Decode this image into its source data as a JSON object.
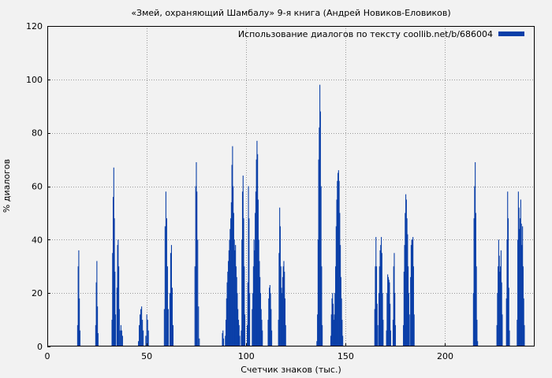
{
  "chart_data": {
    "type": "bar",
    "title": "«Змей, охраняющий Шамбалу» 9-я книга (Андрей Новиков-Еловиков)",
    "xlabel": "Счетчик знаков (тыс.)",
    "ylabel": "% диалогов",
    "xlim": [
      0,
      245
    ],
    "ylim": [
      0,
      120
    ],
    "xticks": [
      0,
      50,
      100,
      150,
      200
    ],
    "yticks": [
      0,
      20,
      40,
      60,
      80,
      100,
      120
    ],
    "grid": true,
    "legend_position": "top-right",
    "bar_color": "#0a3fa8",
    "series": [
      {
        "name": "Использование диалогов по тексту coollib.net/b/686004",
        "points": [
          [
            15.2,
            8
          ],
          [
            15.5,
            30
          ],
          [
            15.8,
            36
          ],
          [
            16.1,
            18
          ],
          [
            16.4,
            6
          ],
          [
            24.3,
            8
          ],
          [
            24.6,
            24
          ],
          [
            24.9,
            32
          ],
          [
            25.2,
            15
          ],
          [
            25.5,
            5
          ],
          [
            32.5,
            10
          ],
          [
            32.8,
            35
          ],
          [
            33.1,
            56
          ],
          [
            33.4,
            67
          ],
          [
            33.7,
            48
          ],
          [
            34.0,
            28
          ],
          [
            34.3,
            12
          ],
          [
            35.0,
            22
          ],
          [
            35.3,
            38
          ],
          [
            35.6,
            40
          ],
          [
            35.9,
            30
          ],
          [
            36.2,
            14
          ],
          [
            36.6,
            6
          ],
          [
            37.0,
            8
          ],
          [
            37.4,
            6
          ],
          [
            37.8,
            4
          ],
          [
            45.8,
            2
          ],
          [
            46.2,
            8
          ],
          [
            46.6,
            12
          ],
          [
            47.0,
            14
          ],
          [
            47.4,
            15
          ],
          [
            47.8,
            10
          ],
          [
            48.2,
            6
          ],
          [
            49.5,
            4
          ],
          [
            50.0,
            12
          ],
          [
            50.4,
            10
          ],
          [
            50.8,
            6
          ],
          [
            58.8,
            14
          ],
          [
            59.2,
            45
          ],
          [
            59.6,
            58
          ],
          [
            60.0,
            48
          ],
          [
            60.4,
            30
          ],
          [
            60.8,
            14
          ],
          [
            61.6,
            20
          ],
          [
            62.0,
            35
          ],
          [
            62.4,
            38
          ],
          [
            62.8,
            22
          ],
          [
            63.2,
            8
          ],
          [
            74.2,
            30
          ],
          [
            74.6,
            60
          ],
          [
            74.9,
            69
          ],
          [
            75.2,
            58
          ],
          [
            75.6,
            40
          ],
          [
            76.0,
            15
          ],
          [
            76.4,
            3
          ],
          [
            88.0,
            5
          ],
          [
            88.3,
            6
          ],
          [
            88.6,
            3
          ],
          [
            89.5,
            4
          ],
          [
            89.8,
            10
          ],
          [
            90.1,
            18
          ],
          [
            90.4,
            24
          ],
          [
            90.7,
            28
          ],
          [
            91.0,
            32
          ],
          [
            91.3,
            36
          ],
          [
            91.6,
            40
          ],
          [
            91.9,
            44
          ],
          [
            92.2,
            48
          ],
          [
            92.5,
            54
          ],
          [
            92.8,
            68
          ],
          [
            93.1,
            75
          ],
          [
            93.4,
            60
          ],
          [
            93.7,
            50
          ],
          [
            94.0,
            40
          ],
          [
            94.3,
            36
          ],
          [
            94.6,
            38
          ],
          [
            94.9,
            30
          ],
          [
            95.2,
            26
          ],
          [
            95.5,
            20
          ],
          [
            95.8,
            14
          ],
          [
            96.1,
            10
          ],
          [
            96.4,
            8
          ],
          [
            96.7,
            4
          ],
          [
            97.5,
            6
          ],
          [
            97.8,
            40
          ],
          [
            98.1,
            58
          ],
          [
            98.4,
            64
          ],
          [
            98.7,
            48
          ],
          [
            99.0,
            30
          ],
          [
            99.3,
            12
          ],
          [
            100.5,
            8
          ],
          [
            100.8,
            24
          ],
          [
            101.1,
            60
          ],
          [
            101.4,
            48
          ],
          [
            101.7,
            20
          ],
          [
            103.0,
            14
          ],
          [
            103.3,
            20
          ],
          [
            103.6,
            30
          ],
          [
            103.9,
            40
          ],
          [
            104.2,
            36
          ],
          [
            104.5,
            50
          ],
          [
            104.8,
            58
          ],
          [
            105.1,
            70
          ],
          [
            105.4,
            77
          ],
          [
            105.7,
            72
          ],
          [
            106.0,
            55
          ],
          [
            106.3,
            40
          ],
          [
            106.6,
            32
          ],
          [
            106.9,
            26
          ],
          [
            107.2,
            20
          ],
          [
            107.5,
            14
          ],
          [
            107.8,
            10
          ],
          [
            108.1,
            6
          ],
          [
            111.0,
            10
          ],
          [
            111.3,
            18
          ],
          [
            111.6,
            22
          ],
          [
            111.9,
            23
          ],
          [
            112.2,
            20
          ],
          [
            112.5,
            14
          ],
          [
            112.8,
            6
          ],
          [
            116.2,
            10
          ],
          [
            116.5,
            35
          ],
          [
            116.8,
            52
          ],
          [
            117.1,
            45
          ],
          [
            117.4,
            30
          ],
          [
            117.7,
            22
          ],
          [
            118.0,
            20
          ],
          [
            118.3,
            26
          ],
          [
            118.6,
            30
          ],
          [
            118.9,
            32
          ],
          [
            119.2,
            28
          ],
          [
            119.5,
            18
          ],
          [
            119.8,
            8
          ],
          [
            135.5,
            2
          ],
          [
            135.8,
            12
          ],
          [
            136.1,
            40
          ],
          [
            136.4,
            70
          ],
          [
            136.7,
            82
          ],
          [
            137.0,
            98
          ],
          [
            137.3,
            88
          ],
          [
            137.6,
            60
          ],
          [
            137.9,
            30
          ],
          [
            138.2,
            8
          ],
          [
            142.5,
            4
          ],
          [
            142.8,
            12
          ],
          [
            143.1,
            18
          ],
          [
            143.4,
            20
          ],
          [
            143.7,
            16
          ],
          [
            144.0,
            10
          ],
          [
            144.3,
            12
          ],
          [
            144.6,
            20
          ],
          [
            144.9,
            30
          ],
          [
            145.2,
            45
          ],
          [
            145.5,
            55
          ],
          [
            145.8,
            62
          ],
          [
            146.1,
            65
          ],
          [
            146.4,
            66
          ],
          [
            146.7,
            62
          ],
          [
            147.0,
            50
          ],
          [
            147.3,
            38
          ],
          [
            147.6,
            26
          ],
          [
            147.9,
            18
          ],
          [
            148.2,
            10
          ],
          [
            148.5,
            4
          ],
          [
            164.6,
            14
          ],
          [
            164.9,
            30
          ],
          [
            165.2,
            41
          ],
          [
            165.5,
            30
          ],
          [
            165.8,
            16
          ],
          [
            166.1,
            8
          ],
          [
            166.7,
            20
          ],
          [
            167.0,
            30
          ],
          [
            167.3,
            36
          ],
          [
            167.6,
            38
          ],
          [
            167.9,
            41
          ],
          [
            168.2,
            35
          ],
          [
            168.5,
            20
          ],
          [
            168.8,
            10
          ],
          [
            170.5,
            6
          ],
          [
            170.8,
            20
          ],
          [
            171.1,
            27
          ],
          [
            171.4,
            26
          ],
          [
            171.7,
            25
          ],
          [
            172.0,
            24
          ],
          [
            172.3,
            16
          ],
          [
            172.6,
            6
          ],
          [
            173.8,
            10
          ],
          [
            174.1,
            30
          ],
          [
            174.4,
            35
          ],
          [
            174.7,
            20
          ],
          [
            175.0,
            8
          ],
          [
            179.0,
            8
          ],
          [
            179.3,
            28
          ],
          [
            179.6,
            38
          ],
          [
            179.9,
            50
          ],
          [
            180.2,
            57
          ],
          [
            180.5,
            55
          ],
          [
            180.8,
            48
          ],
          [
            181.1,
            42
          ],
          [
            181.4,
            30
          ],
          [
            181.7,
            20
          ],
          [
            182.0,
            12
          ],
          [
            182.6,
            26
          ],
          [
            182.9,
            38
          ],
          [
            183.2,
            40
          ],
          [
            183.5,
            40
          ],
          [
            183.8,
            41
          ],
          [
            184.1,
            30
          ],
          [
            184.4,
            12
          ],
          [
            214.2,
            20
          ],
          [
            214.5,
            48
          ],
          [
            214.8,
            60
          ],
          [
            215.1,
            69
          ],
          [
            215.4,
            50
          ],
          [
            215.7,
            30
          ],
          [
            216.0,
            10
          ],
          [
            216.3,
            2
          ],
          [
            226.0,
            8
          ],
          [
            226.3,
            20
          ],
          [
            226.6,
            30
          ],
          [
            226.9,
            40
          ],
          [
            227.2,
            34
          ],
          [
            227.5,
            28
          ],
          [
            227.8,
            30
          ],
          [
            228.1,
            36
          ],
          [
            228.4,
            24
          ],
          [
            228.7,
            12
          ],
          [
            230.8,
            18
          ],
          [
            231.1,
            40
          ],
          [
            231.4,
            58
          ],
          [
            231.7,
            48
          ],
          [
            232.0,
            22
          ],
          [
            232.3,
            6
          ],
          [
            236.2,
            10
          ],
          [
            236.5,
            40
          ],
          [
            236.8,
            58
          ],
          [
            237.1,
            52
          ],
          [
            237.4,
            44
          ],
          [
            237.7,
            48
          ],
          [
            238.0,
            55
          ],
          [
            238.3,
            46
          ],
          [
            238.6,
            38
          ],
          [
            238.9,
            45
          ],
          [
            239.2,
            30
          ],
          [
            239.5,
            18
          ],
          [
            239.8,
            8
          ]
        ]
      }
    ]
  }
}
